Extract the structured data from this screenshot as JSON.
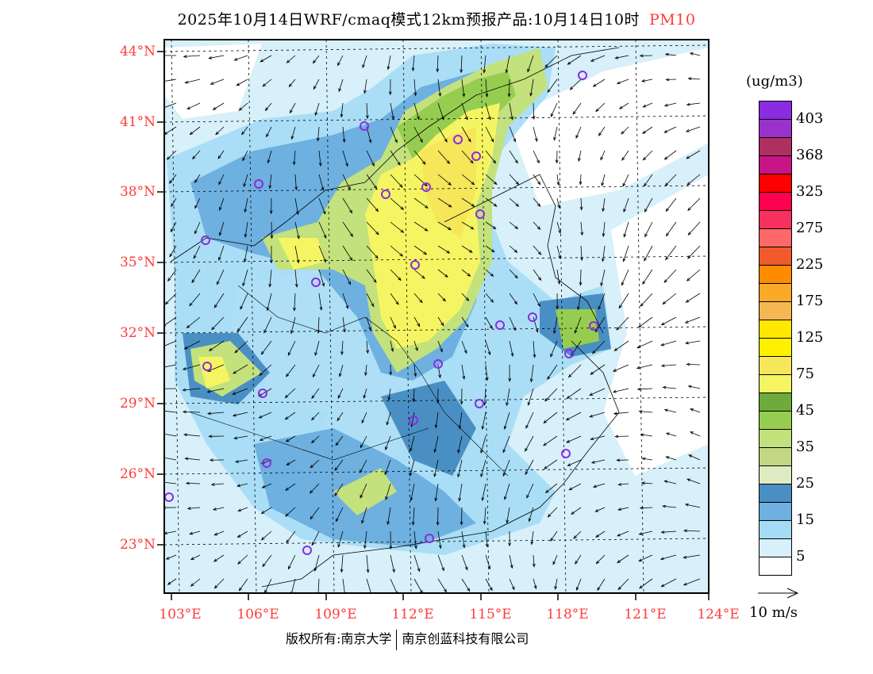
{
  "title": {
    "main": "2025年10月14日WRF/cmaq模式12km预报产品:10月14日10时",
    "species": "PM10",
    "species_color": "#ff3b3b"
  },
  "axes": {
    "lat_labels": [
      "44°N",
      "41°N",
      "38°N",
      "35°N",
      "32°N",
      "29°N",
      "26°N",
      "23°N"
    ],
    "lon_labels": [
      "103°E",
      "106°E",
      "109°E",
      "112°E",
      "115°E",
      "118°E",
      "121°E",
      "124°E"
    ]
  },
  "legend": {
    "unit": "(ug/m3)",
    "colors": [
      "#8b2be2",
      "#9932cc",
      "#ad3060",
      "#c71585",
      "#ff0000",
      "#ff0050",
      "#f83060",
      "#ff6868",
      "#f05a2d",
      "#ff8c00",
      "#fbaa28",
      "#f5b850",
      "#ffe800",
      "#fff000",
      "#f5e65a",
      "#f5f564",
      "#6eaa3c",
      "#96cd50",
      "#c3e17d",
      "#c3d782",
      "#dfebc3",
      "#4a8fc4",
      "#6eb0e0",
      "#a5dcf5",
      "#d7f0fa",
      "#ffffff"
    ],
    "labels": [
      "403",
      "368",
      "325",
      "275",
      "225",
      "175",
      "125",
      "75",
      "45",
      "35",
      "25",
      "15",
      "5"
    ]
  },
  "wind_scale": {
    "label": "10 m/s"
  },
  "footer": {
    "copyright": "版权所有:南京大学",
    "company": "南京创蓝科技有限公司"
  }
}
